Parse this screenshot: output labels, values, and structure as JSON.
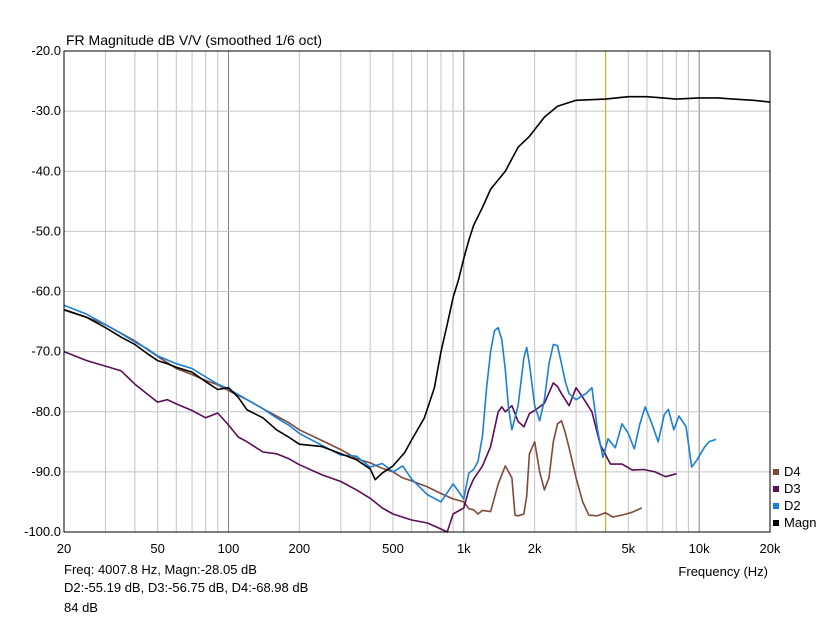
{
  "chart_data": {
    "type": "line",
    "title": "FR Magnitude dB V/V (smoothed 1/6 oct)",
    "xlabel": "Frequency (Hz)",
    "ylabel": "",
    "x_scale": "log",
    "xlim": [
      20,
      20000
    ],
    "ylim": [
      -100,
      -20
    ],
    "grid": true,
    "legend_position": "bottom-right",
    "x_ticks": [
      {
        "value": 20,
        "label": "20"
      },
      {
        "value": 50,
        "label": "50"
      },
      {
        "value": 100,
        "label": "100"
      },
      {
        "value": 200,
        "label": "200"
      },
      {
        "value": 500,
        "label": "500"
      },
      {
        "value": 1000,
        "label": "1k"
      },
      {
        "value": 2000,
        "label": "2k"
      },
      {
        "value": 5000,
        "label": "5k"
      },
      {
        "value": 10000,
        "label": "10k"
      },
      {
        "value": 20000,
        "label": "20k"
      }
    ],
    "y_ticks": [
      {
        "value": -20,
        "label": "-20.0"
      },
      {
        "value": -30,
        "label": "-30.0"
      },
      {
        "value": -40,
        "label": "-40.0"
      },
      {
        "value": -50,
        "label": "-50.0"
      },
      {
        "value": -60,
        "label": "-60.0"
      },
      {
        "value": -70,
        "label": "-70.0"
      },
      {
        "value": -80,
        "label": "-80.0"
      },
      {
        "value": -90,
        "label": "-90.0"
      },
      {
        "value": -100,
        "label": "-100.0"
      }
    ],
    "cursor": {
      "x": 4007.8,
      "color": "#c8b400"
    },
    "series": [
      {
        "name": "Magn",
        "color": "#000000",
        "points": [
          [
            20,
            -63
          ],
          [
            25,
            -64.3
          ],
          [
            30,
            -66
          ],
          [
            35,
            -67.6
          ],
          [
            40,
            -68.8
          ],
          [
            45,
            -70.3
          ],
          [
            50,
            -71.5
          ],
          [
            55,
            -72
          ],
          [
            60,
            -72.6
          ],
          [
            70,
            -73.4
          ],
          [
            80,
            -75
          ],
          [
            90,
            -76.3
          ],
          [
            100,
            -76
          ],
          [
            110,
            -77.6
          ],
          [
            120,
            -79.7
          ],
          [
            140,
            -81
          ],
          [
            160,
            -83
          ],
          [
            180,
            -84.2
          ],
          [
            200,
            -85.4
          ],
          [
            250,
            -85.8
          ],
          [
            300,
            -87
          ],
          [
            350,
            -88
          ],
          [
            400,
            -89.5
          ],
          [
            420,
            -91.3
          ],
          [
            450,
            -90.2
          ],
          [
            500,
            -89
          ],
          [
            560,
            -86.8
          ],
          [
            600,
            -84.7
          ],
          [
            680,
            -81
          ],
          [
            750,
            -76
          ],
          [
            800,
            -70
          ],
          [
            850,
            -65.5
          ],
          [
            900,
            -61
          ],
          [
            950,
            -58
          ],
          [
            1000,
            -54.5
          ],
          [
            1050,
            -51.5
          ],
          [
            1100,
            -49
          ],
          [
            1200,
            -46
          ],
          [
            1300,
            -43
          ],
          [
            1500,
            -40
          ],
          [
            1700,
            -36
          ],
          [
            1900,
            -34.2
          ],
          [
            2200,
            -31
          ],
          [
            2500,
            -29.2
          ],
          [
            3000,
            -28.2
          ],
          [
            4000,
            -28
          ],
          [
            5000,
            -27.6
          ],
          [
            6000,
            -27.6
          ],
          [
            7000,
            -27.8
          ],
          [
            8000,
            -28
          ],
          [
            10000,
            -27.8
          ],
          [
            12000,
            -27.8
          ],
          [
            14000,
            -28
          ],
          [
            17000,
            -28.2
          ],
          [
            20000,
            -28.5
          ]
        ]
      },
      {
        "name": "D2",
        "color": "#1a7fd6",
        "points": [
          [
            20,
            -62.3
          ],
          [
            25,
            -63.8
          ],
          [
            30,
            -65.5
          ],
          [
            35,
            -67
          ],
          [
            40,
            -68.4
          ],
          [
            45,
            -69.5
          ],
          [
            50,
            -70.7
          ],
          [
            55,
            -71.4
          ],
          [
            60,
            -72
          ],
          [
            70,
            -72.8
          ],
          [
            80,
            -74.2
          ],
          [
            90,
            -75.4
          ],
          [
            100,
            -76.2
          ],
          [
            120,
            -78
          ],
          [
            140,
            -79.5
          ],
          [
            160,
            -81
          ],
          [
            180,
            -82.2
          ],
          [
            200,
            -83.6
          ],
          [
            250,
            -85.6
          ],
          [
            300,
            -87.2
          ],
          [
            350,
            -87.4
          ],
          [
            400,
            -89.2
          ],
          [
            450,
            -88.6
          ],
          [
            500,
            -90
          ],
          [
            550,
            -89
          ],
          [
            600,
            -91.2
          ],
          [
            700,
            -93.8
          ],
          [
            800,
            -95
          ],
          [
            900,
            -92
          ],
          [
            1000,
            -94.5
          ],
          [
            1050,
            -90.2
          ],
          [
            1100,
            -89.6
          ],
          [
            1150,
            -88.2
          ],
          [
            1200,
            -84
          ],
          [
            1250,
            -76
          ],
          [
            1300,
            -70
          ],
          [
            1350,
            -66.5
          ],
          [
            1400,
            -66
          ],
          [
            1450,
            -68
          ],
          [
            1500,
            -73
          ],
          [
            1550,
            -79.5
          ],
          [
            1600,
            -83
          ],
          [
            1700,
            -79
          ],
          [
            1800,
            -71
          ],
          [
            1850,
            -69.3
          ],
          [
            1900,
            -72
          ],
          [
            2000,
            -79
          ],
          [
            2100,
            -81.5
          ],
          [
            2200,
            -78
          ],
          [
            2300,
            -72
          ],
          [
            2400,
            -68.8
          ],
          [
            2500,
            -69
          ],
          [
            2600,
            -72
          ],
          [
            2700,
            -75
          ],
          [
            2800,
            -77
          ],
          [
            3000,
            -78
          ],
          [
            3300,
            -77
          ],
          [
            3500,
            -76
          ],
          [
            3700,
            -83
          ],
          [
            3900,
            -87.6
          ],
          [
            4100,
            -84.5
          ],
          [
            4400,
            -86
          ],
          [
            4700,
            -82
          ],
          [
            5000,
            -83.6
          ],
          [
            5300,
            -86.2
          ],
          [
            5600,
            -82
          ],
          [
            5900,
            -79.2
          ],
          [
            6300,
            -82
          ],
          [
            6700,
            -85
          ],
          [
            7100,
            -80.5
          ],
          [
            7400,
            -79.6
          ],
          [
            7800,
            -83
          ],
          [
            8200,
            -80.7
          ],
          [
            8800,
            -82.5
          ],
          [
            9300,
            -89.2
          ],
          [
            9800,
            -88
          ],
          [
            10500,
            -86
          ],
          [
            11000,
            -85
          ],
          [
            11800,
            -84.6
          ]
        ]
      },
      {
        "name": "D3",
        "color": "#5c0d57",
        "points": [
          [
            20,
            -70
          ],
          [
            25,
            -71.5
          ],
          [
            30,
            -72.4
          ],
          [
            35,
            -73.2
          ],
          [
            40,
            -75.4
          ],
          [
            45,
            -77
          ],
          [
            50,
            -78.4
          ],
          [
            55,
            -78
          ],
          [
            60,
            -78.7
          ],
          [
            70,
            -79.8
          ],
          [
            80,
            -81
          ],
          [
            90,
            -80.2
          ],
          [
            100,
            -82.2
          ],
          [
            110,
            -84.2
          ],
          [
            120,
            -85
          ],
          [
            140,
            -86.7
          ],
          [
            160,
            -87
          ],
          [
            180,
            -87.8
          ],
          [
            200,
            -88.8
          ],
          [
            250,
            -90.5
          ],
          [
            300,
            -91.6
          ],
          [
            350,
            -93
          ],
          [
            400,
            -94.4
          ],
          [
            450,
            -96
          ],
          [
            500,
            -97
          ],
          [
            600,
            -98
          ],
          [
            700,
            -98.5
          ],
          [
            800,
            -99.5
          ],
          [
            850,
            -100
          ],
          [
            900,
            -97
          ],
          [
            1000,
            -96
          ],
          [
            1050,
            -93
          ],
          [
            1100,
            -91.2
          ],
          [
            1200,
            -89
          ],
          [
            1300,
            -85.8
          ],
          [
            1400,
            -80
          ],
          [
            1450,
            -79.2
          ],
          [
            1500,
            -80
          ],
          [
            1600,
            -79
          ],
          [
            1700,
            -81.6
          ],
          [
            1800,
            -82.5
          ],
          [
            1900,
            -80.3
          ],
          [
            2000,
            -79.8
          ],
          [
            2200,
            -78.6
          ],
          [
            2400,
            -75.2
          ],
          [
            2500,
            -75.8
          ],
          [
            2600,
            -77
          ],
          [
            2800,
            -79
          ],
          [
            3000,
            -76
          ],
          [
            3200,
            -77.6
          ],
          [
            3500,
            -80
          ],
          [
            3800,
            -85.5
          ],
          [
            4200,
            -88.7
          ],
          [
            4700,
            -88.7
          ],
          [
            5200,
            -89.7
          ],
          [
            5800,
            -89.6
          ],
          [
            6500,
            -90
          ],
          [
            7200,
            -90.8
          ],
          [
            8000,
            -90.3
          ]
        ]
      },
      {
        "name": "D4",
        "color": "#7e4a3a",
        "points": [
          [
            20,
            -63.1
          ],
          [
            25,
            -64.3
          ],
          [
            30,
            -65.5
          ],
          [
            40,
            -68.2
          ],
          [
            50,
            -70.8
          ],
          [
            60,
            -72.8
          ],
          [
            70,
            -73.8
          ],
          [
            80,
            -74.8
          ],
          [
            90,
            -75.5
          ],
          [
            100,
            -76.5
          ],
          [
            120,
            -78
          ],
          [
            140,
            -79.5
          ],
          [
            160,
            -80.7
          ],
          [
            180,
            -81.8
          ],
          [
            200,
            -83
          ],
          [
            250,
            -84.8
          ],
          [
            300,
            -86.3
          ],
          [
            350,
            -87.8
          ],
          [
            400,
            -88.5
          ],
          [
            450,
            -89.4
          ],
          [
            500,
            -90
          ],
          [
            550,
            -91
          ],
          [
            600,
            -91.5
          ],
          [
            700,
            -92.5
          ],
          [
            800,
            -93.6
          ],
          [
            900,
            -94.5
          ],
          [
            1000,
            -95
          ],
          [
            1050,
            -96.1
          ],
          [
            1100,
            -96.3
          ],
          [
            1150,
            -97
          ],
          [
            1200,
            -96.4
          ],
          [
            1300,
            -96.6
          ],
          [
            1400,
            -92
          ],
          [
            1500,
            -89
          ],
          [
            1600,
            -91
          ],
          [
            1650,
            -97.2
          ],
          [
            1700,
            -97.3
          ],
          [
            1800,
            -97
          ],
          [
            1850,
            -94
          ],
          [
            1900,
            -87
          ],
          [
            2000,
            -85
          ],
          [
            2100,
            -90
          ],
          [
            2200,
            -93
          ],
          [
            2300,
            -91
          ],
          [
            2400,
            -85
          ],
          [
            2500,
            -82
          ],
          [
            2600,
            -81.5
          ],
          [
            2700,
            -83.5
          ],
          [
            2800,
            -86
          ],
          [
            3000,
            -91
          ],
          [
            3200,
            -95
          ],
          [
            3400,
            -97.2
          ],
          [
            3700,
            -97.3
          ],
          [
            4000,
            -96.8
          ],
          [
            4300,
            -97.5
          ],
          [
            4800,
            -97.1
          ],
          [
            5200,
            -96.7
          ],
          [
            5700,
            -96
          ]
        ]
      }
    ]
  },
  "readout": {
    "line1": "Freq: 4007.8 Hz, Magn:-28.05 dB",
    "line2": "D2:-55.19 dB, D3:-56.75 dB, D4:-68.98 dB",
    "line3": "84 dB"
  }
}
